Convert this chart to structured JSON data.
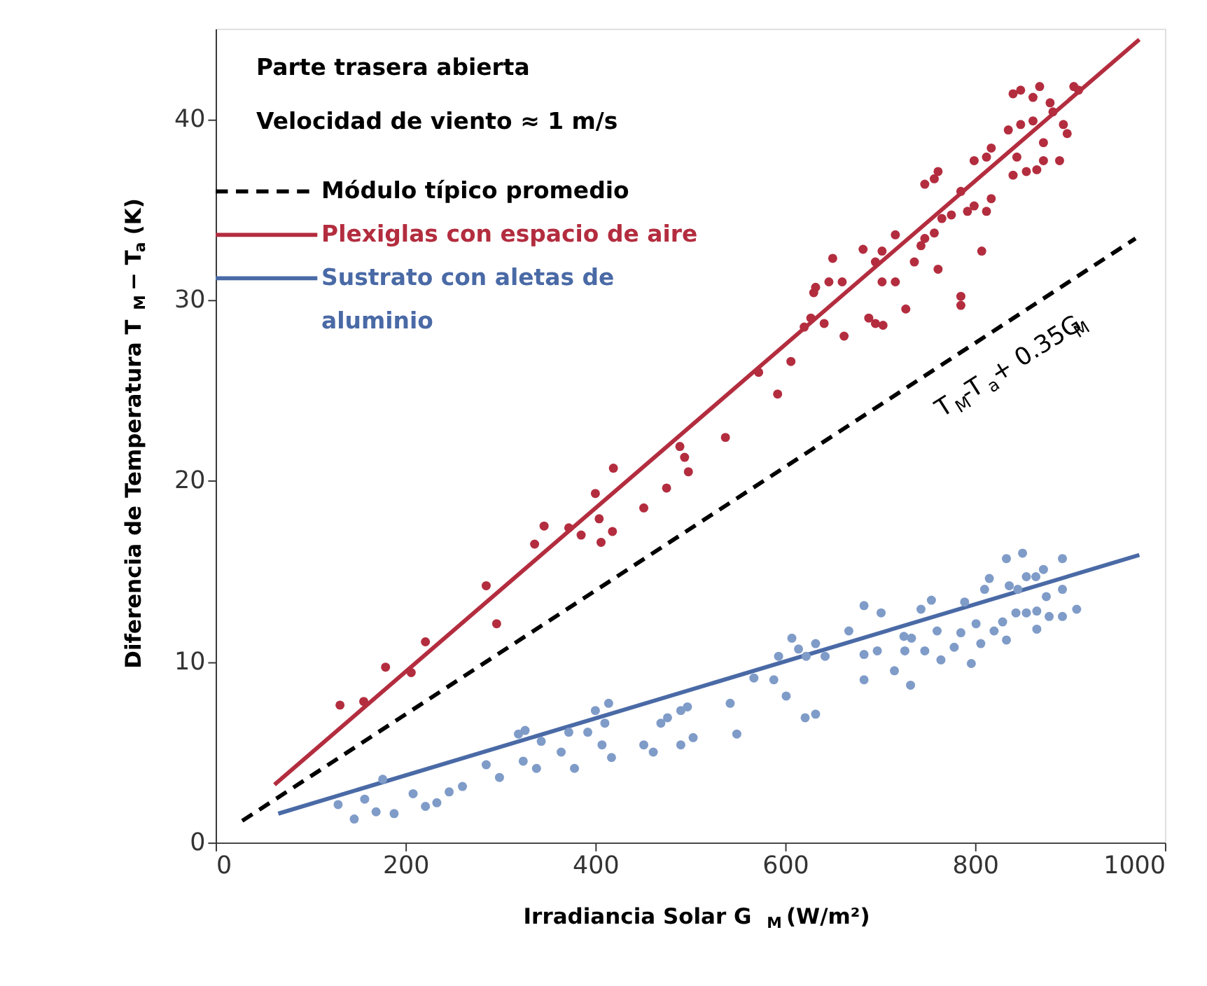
{
  "chart_data": {
    "type": "scatter",
    "xlabel": "Irradiancia Solar G$_{M}$ (W/m²)",
    "ylabel": "Diferencia de Temperatura T$_{M}$ − T$_{a}$ (K)",
    "annotations": [
      "Parte trasera abierta",
      "Velocidad de viento ≈ 1 m/s",
      "T$_{M}$-T$_{a}$+ 0.35G$_{M}$"
    ],
    "xlim": [
      0,
      1000
    ],
    "ylim": [
      0,
      45
    ],
    "xticks": [
      0,
      200,
      400,
      600,
      800,
      1000
    ],
    "yticks": [
      0,
      10,
      20,
      30,
      40
    ],
    "grid": false,
    "legend": "top left",
    "series": [
      {
        "name": "Módulo típico promedio",
        "type": "line",
        "color": "#000000",
        "line_style": "dashed",
        "marker": "none",
        "x": [
          28,
          969
        ],
        "values": [
          1.2,
          33.4
        ]
      },
      {
        "name": "Plexiglas con espacio de aire",
        "type": "line",
        "color": "#b32d3f",
        "line_style": "solid",
        "marker": "none",
        "x": [
          62,
          973
        ],
        "values": [
          3.2,
          44.4
        ]
      },
      {
        "name": "Sustrato con aletas de aluminio",
        "type": "line",
        "color": "#4a6aa6",
        "line_style": "solid",
        "marker": "none",
        "x": [
          66,
          973
        ],
        "values": [
          1.6,
          15.9
        ]
      },
      {
        "color": "#b32d3f",
        "marker": "circle",
        "x": [
          131,
          156,
          179,
          206,
          221,
          285,
          296,
          336,
          346,
          372,
          385,
          400,
          404,
          406,
          418,
          419,
          451,
          475,
          489,
          494,
          498,
          537,
          572,
          592,
          606,
          620,
          627,
          641,
          630,
          632,
          646,
          650,
          660,
          662,
          688,
          695,
          702,
          716,
          703,
          682,
          695,
          702,
          716,
          727,
          736,
          743,
          747,
          757,
          761,
          765,
          775,
          785,
          785,
          792,
          799,
          807,
          812,
          817,
          747,
          757,
          761,
          785,
          799,
          812,
          817,
          840,
          844,
          854,
          865,
          872,
          889,
          835,
          848,
          861,
          872,
          882,
          893,
          897,
          840,
          848,
          861,
          868,
          879,
          904,
          909
        ],
        "values": [
          7.6,
          7.8,
          9.7,
          9.4,
          11.1,
          14.2,
          12.1,
          16.5,
          17.5,
          17.4,
          17.0,
          19.3,
          17.9,
          16.6,
          17.2,
          20.7,
          18.5,
          19.6,
          21.9,
          21.3,
          20.5,
          22.4,
          26.0,
          24.8,
          26.6,
          28.5,
          29.0,
          28.7,
          30.4,
          30.7,
          31.0,
          32.3,
          31.0,
          28.0,
          29.0,
          28.7,
          31.0,
          31.0,
          28.6,
          32.8,
          32.1,
          32.7,
          33.6,
          29.5,
          32.1,
          33.0,
          33.4,
          33.7,
          31.7,
          34.5,
          34.7,
          30.2,
          29.7,
          34.9,
          35.2,
          32.7,
          34.9,
          35.6,
          36.4,
          36.7,
          37.1,
          36.0,
          37.7,
          37.9,
          38.4,
          36.9,
          37.9,
          37.1,
          37.2,
          37.7,
          37.7,
          39.4,
          39.7,
          39.9,
          38.7,
          40.4,
          39.7,
          39.2,
          41.4,
          41.6,
          41.2,
          41.8,
          40.9,
          41.8,
          41.6
        ]
      },
      {
        "color": "#7f9bc8",
        "marker": "circle",
        "x": [
          129,
          146,
          157,
          169,
          176,
          188,
          208,
          221,
          233,
          246,
          260,
          285,
          299,
          319,
          326,
          324,
          338,
          343,
          364,
          372,
          378,
          392,
          400,
          410,
          407,
          414,
          417,
          451,
          461,
          469,
          476,
          490,
          497,
          490,
          503,
          542,
          549,
          567,
          588,
          593,
          601,
          607,
          614,
          621,
          632,
          622,
          632,
          642,
          667,
          683,
          701,
          683,
          683,
          697,
          715,
          732,
          725,
          726,
          733,
          743,
          754,
          747,
          760,
          764,
          778,
          785,
          789,
          796,
          801,
          806,
          810,
          815,
          820,
          829,
          833,
          850,
          836,
          845,
          854,
          864,
          872,
          833,
          843,
          854,
          865,
          878,
          892,
          865,
          875,
          892,
          892,
          907
        ],
        "values": [
          2.1,
          1.3,
          2.4,
          1.7,
          3.5,
          1.6,
          2.7,
          2.0,
          2.2,
          2.8,
          3.1,
          4.3,
          3.6,
          6.0,
          6.2,
          4.5,
          4.1,
          5.6,
          5.0,
          6.1,
          4.1,
          6.1,
          7.3,
          6.6,
          5.4,
          7.7,
          4.7,
          5.4,
          5.0,
          6.6,
          6.9,
          7.3,
          7.5,
          5.4,
          5.8,
          7.7,
          6.0,
          9.1,
          9.0,
          10.3,
          8.1,
          11.3,
          10.7,
          6.9,
          7.1,
          10.3,
          11.0,
          10.3,
          11.7,
          13.1,
          12.7,
          10.4,
          9.0,
          10.6,
          9.5,
          8.7,
          11.4,
          10.6,
          11.3,
          12.9,
          13.4,
          10.6,
          11.7,
          10.1,
          10.8,
          11.6,
          13.3,
          9.9,
          12.1,
          11.0,
          14.0,
          14.6,
          11.7,
          12.2,
          15.7,
          16.0,
          14.2,
          14.0,
          14.7,
          14.7,
          15.1,
          11.2,
          12.7,
          12.7,
          12.8,
          12.5,
          12.5,
          11.8,
          13.6,
          14.0,
          15.7,
          12.9
        ]
      }
    ]
  }
}
